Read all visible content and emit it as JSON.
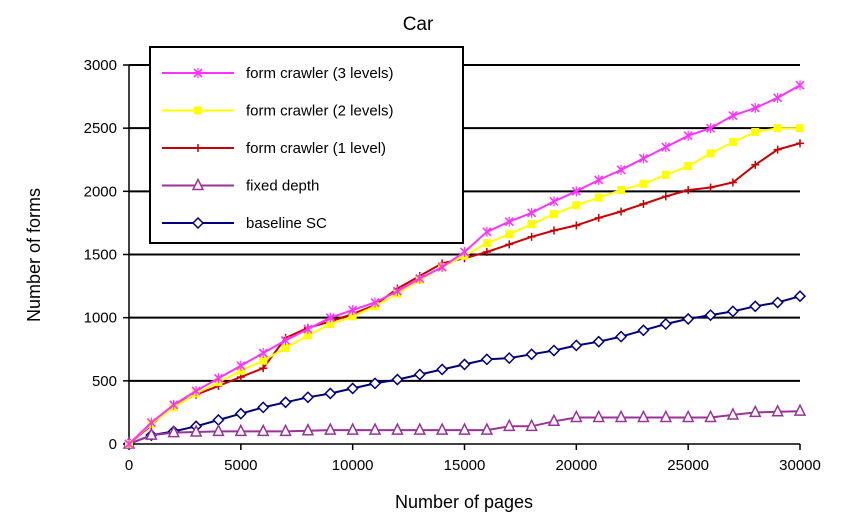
{
  "chart_data": {
    "type": "line",
    "title": "Car",
    "xlabel": "Number of pages",
    "ylabel": "Number of forms",
    "xlim": [
      0,
      30000
    ],
    "ylim": [
      0,
      3000
    ],
    "xticks": [
      0,
      5000,
      10000,
      15000,
      20000,
      25000,
      30000
    ],
    "yticks": [
      0,
      500,
      1000,
      1500,
      2000,
      2500,
      3000
    ],
    "grid": "horizontal",
    "legend_position": "top-left",
    "series": [
      {
        "name": "form crawler (3 levels)",
        "color": "#ff33ff",
        "marker": "x",
        "x": [
          0,
          1000,
          2000,
          3000,
          4000,
          5000,
          6000,
          7000,
          8000,
          9000,
          10000,
          11000,
          12000,
          13000,
          14000,
          15000,
          16000,
          17000,
          18000,
          19000,
          20000,
          21000,
          22000,
          23000,
          24000,
          25000,
          26000,
          27000,
          28000,
          29000,
          30000
        ],
        "y": [
          0,
          170,
          310,
          420,
          520,
          620,
          720,
          820,
          910,
          1000,
          1060,
          1120,
          1210,
          1310,
          1400,
          1520,
          1680,
          1760,
          1830,
          1920,
          2000,
          2090,
          2170,
          2260,
          2350,
          2440,
          2500,
          2600,
          2660,
          2740,
          2840
        ]
      },
      {
        "name": "form crawler (2 levels)",
        "color": "#ffff00",
        "marker": "square",
        "x": [
          0,
          1000,
          2000,
          3000,
          4000,
          5000,
          6000,
          7000,
          8000,
          9000,
          10000,
          11000,
          12000,
          13000,
          14000,
          15000,
          16000,
          17000,
          18000,
          19000,
          20000,
          21000,
          22000,
          23000,
          24000,
          25000,
          26000,
          27000,
          28000,
          29000,
          30000
        ],
        "y": [
          0,
          160,
          290,
          400,
          490,
          580,
          660,
          760,
          860,
          950,
          1010,
          1090,
          1190,
          1300,
          1400,
          1490,
          1590,
          1660,
          1740,
          1820,
          1890,
          1950,
          2010,
          2060,
          2130,
          2200,
          2300,
          2390,
          2470,
          2500,
          2500
        ]
      },
      {
        "name": "form crawler (1 level)",
        "color": "#cc0000",
        "marker": "plus",
        "x": [
          0,
          1000,
          2000,
          3000,
          4000,
          5000,
          6000,
          7000,
          8000,
          9000,
          10000,
          11000,
          12000,
          13000,
          14000,
          15000,
          16000,
          17000,
          18000,
          19000,
          20000,
          21000,
          22000,
          23000,
          24000,
          25000,
          26000,
          27000,
          28000,
          29000,
          30000
        ],
        "y": [
          0,
          150,
          310,
          390,
          460,
          530,
          600,
          840,
          920,
          970,
          1030,
          1100,
          1230,
          1330,
          1430,
          1470,
          1520,
          1580,
          1640,
          1690,
          1730,
          1790,
          1840,
          1900,
          1960,
          2010,
          2030,
          2070,
          2210,
          2330,
          2380
        ]
      },
      {
        "name": "fixed depth",
        "color": "#993399",
        "marker": "triangle",
        "x": [
          0,
          1000,
          2000,
          3000,
          4000,
          5000,
          6000,
          7000,
          8000,
          9000,
          10000,
          11000,
          12000,
          13000,
          14000,
          15000,
          16000,
          17000,
          18000,
          19000,
          20000,
          21000,
          22000,
          23000,
          24000,
          25000,
          26000,
          27000,
          28000,
          29000,
          30000
        ],
        "y": [
          0,
          70,
          90,
          95,
          100,
          100,
          100,
          100,
          105,
          110,
          110,
          110,
          110,
          110,
          110,
          110,
          110,
          140,
          140,
          180,
          210,
          210,
          210,
          210,
          210,
          210,
          210,
          230,
          250,
          255,
          260
        ]
      },
      {
        "name": "baseline SC",
        "color": "#000080",
        "marker": "diamond",
        "x": [
          0,
          1000,
          2000,
          3000,
          4000,
          5000,
          6000,
          7000,
          8000,
          9000,
          10000,
          11000,
          12000,
          13000,
          14000,
          15000,
          16000,
          17000,
          18000,
          19000,
          20000,
          21000,
          22000,
          23000,
          24000,
          25000,
          26000,
          27000,
          28000,
          29000,
          30000
        ],
        "y": [
          0,
          70,
          100,
          140,
          190,
          240,
          290,
          330,
          370,
          400,
          440,
          480,
          510,
          550,
          590,
          630,
          670,
          680,
          710,
          740,
          780,
          810,
          850,
          900,
          950,
          990,
          1020,
          1050,
          1090,
          1120,
          1170
        ]
      }
    ]
  }
}
